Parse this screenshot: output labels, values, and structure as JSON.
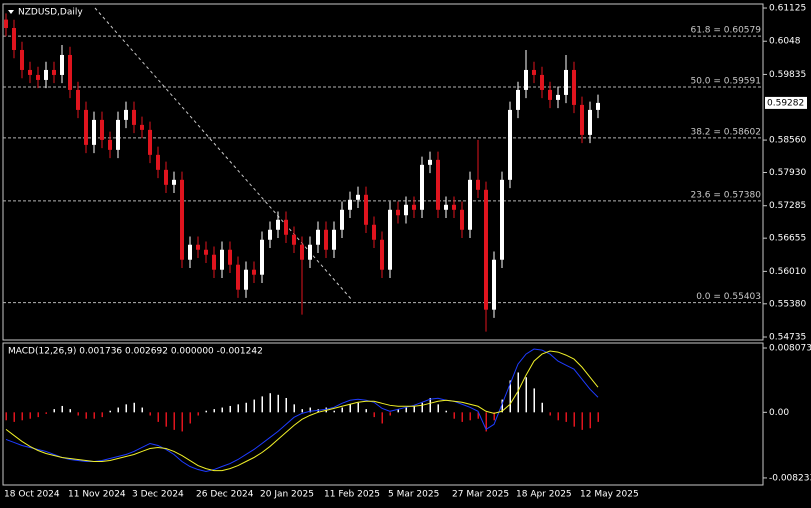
{
  "chart_data": [
    {
      "type": "candlestick",
      "title": "NZDUSD,Daily",
      "categories": [
        "18 Oct 2024",
        null,
        null,
        null,
        null,
        null,
        null,
        null,
        "11 Nov 2024",
        null,
        null,
        null,
        null,
        null,
        null,
        null,
        "3 Dec 2024",
        null,
        null,
        null,
        null,
        null,
        null,
        null,
        "26 Dec 2024",
        null,
        null,
        null,
        null,
        null,
        null,
        null,
        "20 Jan 2025",
        null,
        null,
        null,
        null,
        null,
        null,
        null,
        "11 Feb 2025",
        null,
        null,
        null,
        null,
        null,
        null,
        null,
        "5 Mar 2025",
        null,
        null,
        null,
        null,
        null,
        null,
        null,
        "27 Mar 2025",
        null,
        null,
        null,
        null,
        null,
        null,
        null,
        "18 Apr 2025",
        null,
        null,
        null,
        null,
        null,
        null,
        null,
        "12 May 2025",
        null,
        null
      ],
      "open": [
        0.609,
        0.60737,
        0.6031,
        0.59922,
        0.59825,
        0.59728,
        0.59922,
        0.59825,
        0.60213,
        0.59534,
        0.59146,
        0.58467,
        0.58952,
        0.58564,
        0.5837,
        0.58952,
        0.59146,
        0.58855,
        0.58758,
        0.58273,
        0.57982,
        0.57691,
        0.57788,
        0.56236,
        0.56527,
        0.5643,
        0.56333,
        0.56042,
        0.5643,
        0.56139,
        0.55654,
        0.56042,
        0.55945,
        0.56624,
        0.56818,
        0.57012,
        0.56721,
        0.56527,
        0.56236,
        0.56527,
        0.56818,
        0.5643,
        0.56818,
        0.57206,
        0.574,
        0.57497,
        0.56915,
        0.56624,
        0.56042,
        0.57206,
        0.571,
        0.57303,
        0.57206,
        0.58079,
        0.58176,
        0.57206,
        0.57303,
        0.57206,
        0.56818,
        0.57788,
        0.57594,
        0.55266,
        0.56236,
        0.57788,
        0.59146,
        0.59534,
        0.59922,
        0.59825,
        0.59534,
        0.5934,
        0.59437,
        0.59922,
        0.59243,
        0.58661,
        0.59146
      ],
      "high": [
        0.6102,
        0.60897,
        0.6047,
        0.60082,
        0.59985,
        0.60082,
        0.60082,
        0.60407,
        0.60373,
        0.59694,
        0.59306,
        0.59112,
        0.59112,
        0.58724,
        0.59112,
        0.59306,
        0.59306,
        0.59015,
        0.58918,
        0.58433,
        0.58142,
        0.57948,
        0.57948,
        0.56687,
        0.56687,
        0.5659,
        0.56493,
        0.5659,
        0.5659,
        0.56299,
        0.56202,
        0.56202,
        0.56784,
        0.56978,
        0.57172,
        0.57172,
        0.56881,
        0.56687,
        0.56687,
        0.56978,
        0.56978,
        0.56978,
        0.57366,
        0.5756,
        0.57657,
        0.57657,
        0.57075,
        0.56784,
        0.57366,
        0.57366,
        0.57463,
        0.57463,
        0.58239,
        0.58336,
        0.58336,
        0.57463,
        0.57463,
        0.57366,
        0.57948,
        0.58564,
        0.57754,
        0.56396,
        0.57948,
        0.59306,
        0.59694,
        0.6031,
        0.60082,
        0.59985,
        0.59694,
        0.59597,
        0.60213,
        0.60082,
        0.59403,
        0.59306,
        0.59442
      ],
      "low": [
        0.60577,
        0.6015,
        0.59762,
        0.59665,
        0.59568,
        0.59568,
        0.59665,
        0.59665,
        0.59374,
        0.58986,
        0.58307,
        0.58307,
        0.58404,
        0.5821,
        0.5821,
        0.58792,
        0.58695,
        0.58598,
        0.58113,
        0.57822,
        0.57531,
        0.57531,
        0.56076,
        0.56076,
        0.5627,
        0.56173,
        0.55882,
        0.55882,
        0.55979,
        0.55494,
        0.55494,
        0.55785,
        0.55785,
        0.56464,
        0.56658,
        0.56561,
        0.56367,
        0.55169,
        0.56076,
        0.56367,
        0.5627,
        0.5627,
        0.56658,
        0.57046,
        0.5724,
        0.56755,
        0.56464,
        0.55882,
        0.55882,
        0.5694,
        0.5694,
        0.57046,
        0.57046,
        0.57919,
        0.57046,
        0.57046,
        0.57046,
        0.56658,
        0.56658,
        0.57434,
        0.5484,
        0.55106,
        0.56076,
        0.57628,
        0.58986,
        0.59374,
        0.59665,
        0.59374,
        0.5918,
        0.5918,
        0.59277,
        0.59083,
        0.58501,
        0.58501,
        0.58986
      ],
      "close": [
        0.60737,
        0.6031,
        0.59922,
        0.59825,
        0.59728,
        0.59922,
        0.59825,
        0.60213,
        0.59534,
        0.59146,
        0.58467,
        0.58952,
        0.58564,
        0.5837,
        0.58952,
        0.59146,
        0.58855,
        0.58758,
        0.58273,
        0.57982,
        0.57691,
        0.57788,
        0.56236,
        0.56527,
        0.5643,
        0.56333,
        0.56042,
        0.5643,
        0.56139,
        0.55654,
        0.56042,
        0.55945,
        0.56624,
        0.56818,
        0.57012,
        0.56721,
        0.56527,
        0.56236,
        0.56527,
        0.56818,
        0.5643,
        0.56818,
        0.57206,
        0.574,
        0.57497,
        0.56915,
        0.56624,
        0.56042,
        0.57206,
        0.571,
        0.57303,
        0.57206,
        0.58079,
        0.58176,
        0.57206,
        0.57303,
        0.57206,
        0.56818,
        0.57788,
        0.57594,
        0.55266,
        0.56236,
        0.57788,
        0.59146,
        0.59534,
        0.59922,
        0.59825,
        0.59534,
        0.5934,
        0.59437,
        0.59922,
        0.59243,
        0.58661,
        0.59146,
        0.59282
      ],
      "up_color": "#ffffff",
      "down_color": "#e0141e",
      "ylim": [
        0.54677,
        0.61203
      ],
      "yticks": [
        0.61125,
        0.6048,
        0.59835,
        {
          "value": 0.5856,
          "label": "0.58560"
        },
        {
          "value": 0.5793,
          "label": "0.57930"
        },
        0.57285,
        0.56655,
        {
          "value": 0.5601,
          "label": "0.56010"
        },
        {
          "value": 0.5538,
          "label": "0.55380"
        },
        0.54735
      ],
      "levels": [
        {
          "value": 0.60579,
          "label": "61.8 = 0.60579"
        },
        {
          "value": 0.59591,
          "label": "50.0 = 0.59591"
        },
        {
          "value": 0.58602,
          "label": "38.2 = 0.58602"
        },
        {
          "value": 0.5738,
          "label": "23.6 = 0.57380"
        },
        {
          "value": 0.55403,
          "label": "0.0 = 0.55403"
        }
      ],
      "last_price": 0.59282
    },
    {
      "type": "macd",
      "title": "MACD(12,26,9) 0.001736 0.002692 0.000000 -0.001242",
      "histogram": {
        "color_up": "#ffffff",
        "color_down": "#e0141e",
        "values": [
          -0.001,
          -0.0012,
          -0.001,
          -0.0008,
          -0.0006,
          -0.0002,
          0.0004,
          0.0008,
          0.0004,
          -0.0004,
          -0.0008,
          -0.0008,
          -0.0006,
          0.0002,
          0.0006,
          0.001,
          0.0012,
          0.0006,
          -0.0004,
          -0.0012,
          -0.0018,
          -0.0022,
          -0.0024,
          -0.0014,
          -0.0004,
          0.0002,
          0.0004,
          0.0006,
          0.0008,
          0.001,
          0.0012,
          0.0016,
          0.002,
          0.0024,
          0.0022,
          0.0018,
          0.001,
          0.0004,
          0.0006,
          0.0004,
          0.0006,
          0.0002,
          0.0006,
          0.001,
          0.0012,
          0.0004,
          -0.0006,
          -0.0014,
          -0.0004,
          0.0004,
          0.0006,
          0.0008,
          0.0012,
          0.0018,
          0.001,
          0.0002,
          -0.0008,
          -0.0012,
          -0.001,
          -0.0008,
          -0.0024,
          -0.001,
          0.0016,
          0.004,
          0.005,
          0.0044,
          0.003,
          0.0012,
          -0.0004,
          -0.001,
          -0.0012,
          -0.0018,
          -0.0022,
          -0.002,
          -0.0012
        ]
      },
      "series": [
        {
          "color": "#1e3cff",
          "values": [
            -0.0034,
            -0.00378,
            -0.00416,
            -0.00441,
            -0.00466,
            -0.00491,
            -0.00529,
            -0.00567,
            -0.00592,
            -0.00605,
            -0.00617,
            -0.00617,
            -0.00605,
            -0.0058,
            -0.00554,
            -0.00529,
            -0.00491,
            -0.00441,
            -0.00391,
            -0.00416,
            -0.00466,
            -0.00529,
            -0.00617,
            -0.0068,
            -0.00718,
            -0.00743,
            -0.00718,
            -0.0068,
            -0.00643,
            -0.00592,
            -0.00529,
            -0.00466,
            -0.00391,
            -0.00315,
            -0.00239,
            -0.00151,
            -0.00063,
            -0.00013,
            0.00013,
            0.00025,
            0.00038,
            0.00063,
            0.00113,
            0.00151,
            0.00164,
            0.00151,
            0.00126,
            0.0005,
            0.00013,
            0.00038,
            0.00063,
            0.00088,
            0.00126,
            0.00164,
            0.00176,
            0.00151,
            0.00139,
            0.00101,
            0.00063,
            0.00013,
            -0.00214,
            -0.00151,
            0.00101,
            0.00353,
            0.00605,
            0.00731,
            0.00794,
            0.00781,
            0.00731,
            0.00643,
            0.00592,
            0.00542,
            0.00416,
            0.0029,
            0.00189
          ]
        },
        {
          "color": "#f0f028",
          "values": [
            -0.00214,
            -0.0029,
            -0.00365,
            -0.00428,
            -0.00479,
            -0.00517,
            -0.00542,
            -0.00567,
            -0.0058,
            -0.00592,
            -0.00605,
            -0.00617,
            -0.00617,
            -0.00605,
            -0.0058,
            -0.00554,
            -0.00529,
            -0.00491,
            -0.00454,
            -0.00441,
            -0.00454,
            -0.00491,
            -0.00542,
            -0.00605,
            -0.00668,
            -0.00706,
            -0.00731,
            -0.00731,
            -0.00706,
            -0.00668,
            -0.00617,
            -0.00567,
            -0.00504,
            -0.00428,
            -0.0034,
            -0.00252,
            -0.00164,
            -0.00088,
            -0.00038,
            0,
            0.00025,
            0.0005,
            0.00076,
            0.00101,
            0.00126,
            0.00139,
            0.00139,
            0.00113,
            0.00088,
            0.00076,
            0.00076,
            0.00076,
            0.00088,
            0.00113,
            0.00139,
            0.00151,
            0.00139,
            0.00126,
            0.00101,
            0.00076,
            0.00013,
            -0.00013,
            0.00013,
            0.00101,
            0.00265,
            0.00466,
            0.00643,
            0.00731,
            0.00769,
            0.00756,
            0.00718,
            0.00668,
            0.00567,
            0.00441,
            0.00315
          ]
        }
      ],
      "ylim": [
        -0.00912,
        0.0087
      ],
      "yticks": [
        0.008073,
        {
          "value": 0,
          "label": "0.00"
        },
        -0.008233
      ]
    }
  ]
}
